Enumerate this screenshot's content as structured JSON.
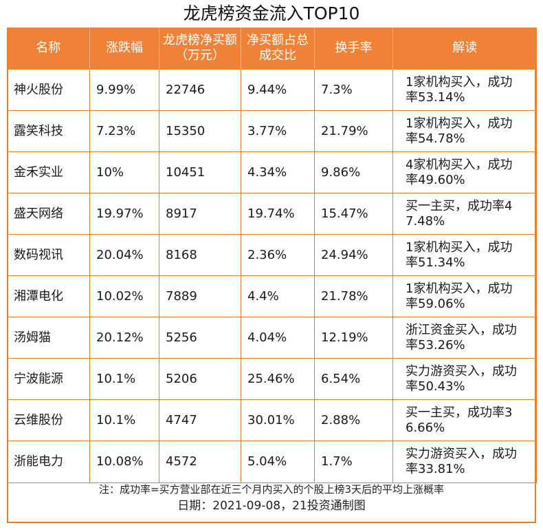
{
  "title": "龙虎榜资金流入TOP10",
  "columns": [
    "名称",
    "涨跌幅",
    "龙虎榜净买额（万元）",
    "净买额占总成交比",
    "换手率",
    "解读"
  ],
  "rows": [
    [
      "神火股份",
      "9.99%",
      "22746",
      "9.44%",
      "7.3%",
      "1家机构买入，成功率53.14%"
    ],
    [
      "露笑科技",
      "7.23%",
      "15350",
      "3.77%",
      "21.79%",
      "1家机构买入，成功率54.78%"
    ],
    [
      "金禾实业",
      "10%",
      "10451",
      "4.34%",
      "9.86%",
      "4家机构买入，成功率49.60%"
    ],
    [
      "盛天网络",
      "19.97%",
      "8917",
      "19.74%",
      "15.47%",
      "买一主买，成功率47.48%"
    ],
    [
      "数码视讯",
      "20.04%",
      "8168",
      "2.36%",
      "24.94%",
      "1家机构买入，成功率51.34%"
    ],
    [
      "湘潭电化",
      "10.02%",
      "7889",
      "4.4%",
      "21.78%",
      "1家机构买入，成功率59.06%"
    ],
    [
      "汤姆猫",
      "20.12%",
      "5256",
      "4.04%",
      "12.19%",
      "浙江资金买入，成功率53.26%"
    ],
    [
      "宁波能源",
      "10.1%",
      "5206",
      "25.46%",
      "6.54%",
      "实力游资买入，成功率50.43%"
    ],
    [
      "云维股份",
      "10.1%",
      "4747",
      "30.01%",
      "2.88%",
      "买一主买，成功率36.66%"
    ],
    [
      "浙能电力",
      "10.08%",
      "4572",
      "5.04%",
      "1.7%",
      "实力游资买入，成功率33.81%"
    ]
  ],
  "footer": {
    "note": "注：成功率=买方营业部在近三个月内买入的个股上榜3天后的平均上涨概率",
    "date": "日期：2021-09-08，21投资通制图"
  }
}
